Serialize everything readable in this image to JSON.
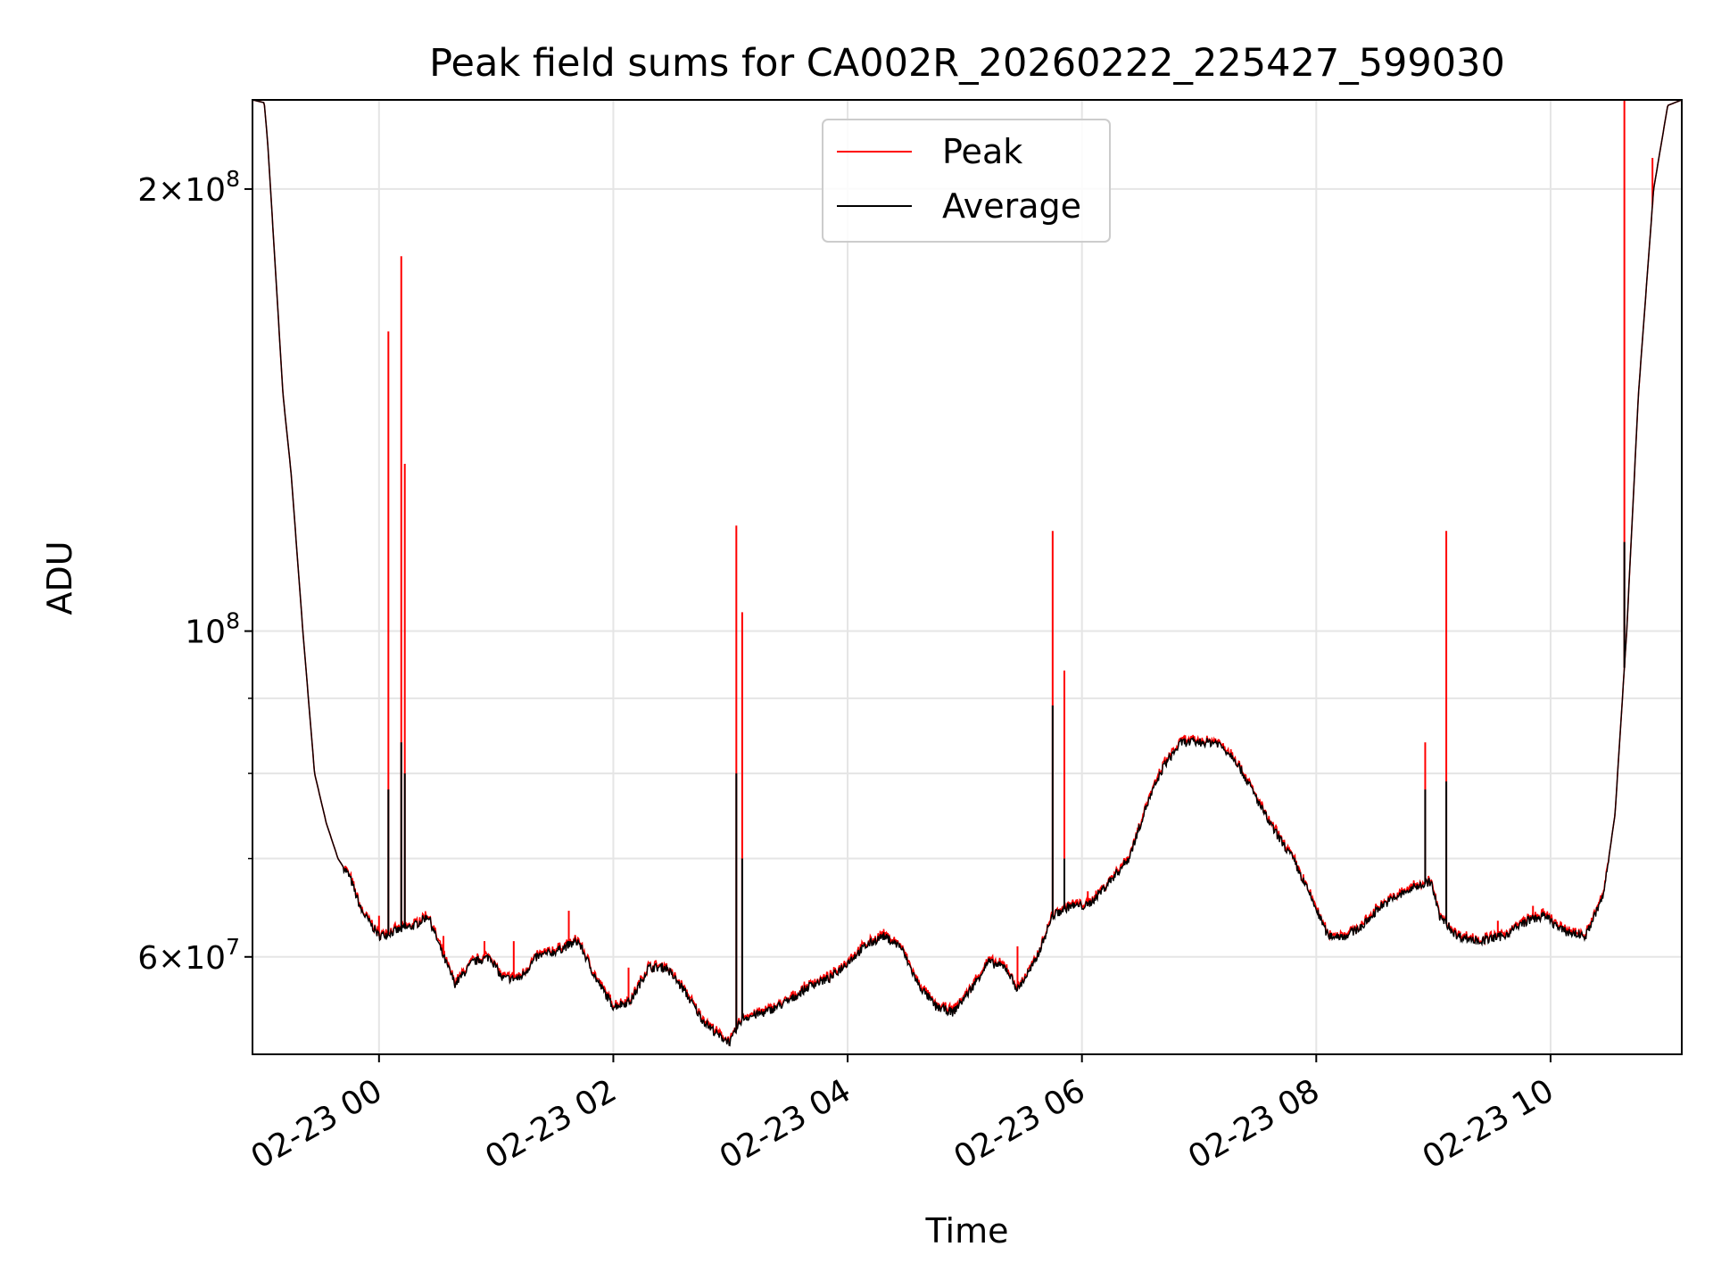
{
  "chart_data": {
    "type": "line",
    "title": "Peak field sums for CA002R_20260222_225427_599030",
    "xlabel": "Time",
    "ylabel": "ADU",
    "yscale": "log",
    "ylim": [
      51500000,
      230000000
    ],
    "xlim_hours": [
      -1.08,
      11.12
    ],
    "grid": true,
    "legend_position": "upper center",
    "x_ticks": [
      {
        "hour": 0,
        "label": "02-23 00"
      },
      {
        "hour": 2,
        "label": "02-23 02"
      },
      {
        "hour": 4,
        "label": "02-23 04"
      },
      {
        "hour": 6,
        "label": "02-23 06"
      },
      {
        "hour": 8,
        "label": "02-23 08"
      },
      {
        "hour": 10,
        "label": "02-23 10"
      }
    ],
    "y_ticks_major": [
      {
        "value": 60000000,
        "mant": "6",
        "exp": "7"
      },
      {
        "value": 100000000,
        "mant": "",
        "exp": "8"
      },
      {
        "value": 200000000,
        "mant": "2",
        "exp": "8"
      }
    ],
    "y_ticks_minor": [
      70000000,
      80000000,
      90000000
    ],
    "series": [
      {
        "name": "Peak",
        "color": "#ff0000",
        "baseline": [
          [
            -1.08,
            230000000
          ],
          [
            -0.98,
            229000000
          ],
          [
            -0.95,
            215000000
          ],
          [
            -0.9,
            185000000
          ],
          [
            -0.82,
            145000000
          ],
          [
            -0.75,
            128000000
          ],
          [
            -0.65,
            100000000
          ],
          [
            -0.55,
            80000000
          ],
          [
            -0.45,
            74000000
          ],
          [
            -0.35,
            70000000
          ],
          [
            -0.25,
            68000000
          ],
          [
            -0.15,
            64500000
          ],
          [
            0.0,
            62000000
          ],
          [
            0.15,
            62500000
          ],
          [
            0.3,
            63000000
          ],
          [
            0.42,
            64000000
          ],
          [
            0.55,
            60000000
          ],
          [
            0.65,
            57500000
          ],
          [
            0.8,
            59500000
          ],
          [
            0.95,
            60000000
          ],
          [
            1.05,
            58000000
          ],
          [
            1.2,
            58000000
          ],
          [
            1.35,
            60000000
          ],
          [
            1.5,
            60500000
          ],
          [
            1.7,
            61500000
          ],
          [
            1.85,
            58000000
          ],
          [
            2.0,
            55500000
          ],
          [
            2.15,
            56000000
          ],
          [
            2.3,
            59000000
          ],
          [
            2.45,
            59000000
          ],
          [
            2.6,
            57000000
          ],
          [
            2.75,
            54500000
          ],
          [
            2.9,
            53000000
          ],
          [
            3.0,
            52500000
          ],
          [
            3.1,
            54500000
          ],
          [
            3.3,
            55000000
          ],
          [
            3.5,
            56000000
          ],
          [
            3.7,
            57500000
          ],
          [
            3.85,
            58000000
          ],
          [
            4.0,
            59500000
          ],
          [
            4.15,
            61000000
          ],
          [
            4.3,
            62000000
          ],
          [
            4.45,
            61000000
          ],
          [
            4.6,
            57500000
          ],
          [
            4.75,
            55500000
          ],
          [
            4.9,
            55000000
          ],
          [
            5.05,
            57000000
          ],
          [
            5.2,
            59500000
          ],
          [
            5.35,
            59000000
          ],
          [
            5.45,
            57000000
          ],
          [
            5.6,
            59500000
          ],
          [
            5.75,
            64000000
          ],
          [
            5.9,
            65000000
          ],
          [
            6.05,
            65000000
          ],
          [
            6.2,
            67000000
          ],
          [
            6.4,
            70000000
          ],
          [
            6.55,
            76000000
          ],
          [
            6.7,
            81000000
          ],
          [
            6.85,
            84000000
          ],
          [
            7.0,
            84000000
          ],
          [
            7.15,
            84000000
          ],
          [
            7.3,
            82000000
          ],
          [
            7.45,
            78000000
          ],
          [
            7.6,
            74000000
          ],
          [
            7.8,
            70000000
          ],
          [
            7.95,
            66000000
          ],
          [
            8.1,
            62000000
          ],
          [
            8.25,
            62000000
          ],
          [
            8.4,
            63000000
          ],
          [
            8.55,
            65000000
          ],
          [
            8.7,
            66000000
          ],
          [
            8.85,
            67000000
          ],
          [
            8.98,
            67500000
          ],
          [
            9.05,
            64000000
          ],
          [
            9.2,
            62000000
          ],
          [
            9.4,
            61500000
          ],
          [
            9.6,
            62000000
          ],
          [
            9.8,
            63500000
          ],
          [
            9.95,
            64000000
          ],
          [
            10.1,
            62500000
          ],
          [
            10.3,
            62000000
          ],
          [
            10.45,
            66000000
          ],
          [
            10.55,
            75000000
          ],
          [
            10.65,
            100000000
          ],
          [
            10.75,
            145000000
          ],
          [
            10.88,
            200000000
          ],
          [
            11.0,
            228000000
          ],
          [
            11.12,
            230000000
          ]
        ],
        "spikes": [
          [
            0.08,
            160000000
          ],
          [
            0.19,
            180000000
          ],
          [
            0.22,
            130000000
          ],
          [
            3.05,
            118000000
          ],
          [
            3.1,
            103000000
          ],
          [
            5.75,
            117000000
          ],
          [
            5.85,
            94000000
          ],
          [
            8.93,
            84000000
          ],
          [
            9.11,
            117000000
          ],
          [
            10.63,
            230000000
          ],
          [
            10.87,
            210000000
          ],
          [
            0.0,
            64000000
          ],
          [
            0.55,
            62000000
          ],
          [
            0.9,
            61500000
          ],
          [
            1.15,
            61500000
          ],
          [
            1.62,
            64500000
          ],
          [
            2.13,
            59000000
          ],
          [
            2.5,
            58500000
          ],
          [
            5.45,
            61000000
          ],
          [
            6.05,
            66500000
          ],
          [
            9.55,
            63500000
          ],
          [
            9.85,
            65000000
          ]
        ]
      },
      {
        "name": "Average",
        "color": "#000000",
        "spikes": [
          [
            0.08,
            78000000
          ],
          [
            0.19,
            84000000
          ],
          [
            0.22,
            80000000
          ],
          [
            3.05,
            80000000
          ],
          [
            3.1,
            70000000
          ],
          [
            5.75,
            89000000
          ],
          [
            5.85,
            70000000
          ],
          [
            8.93,
            78000000
          ],
          [
            9.11,
            79000000
          ],
          [
            10.63,
            115000000
          ]
        ]
      }
    ]
  }
}
